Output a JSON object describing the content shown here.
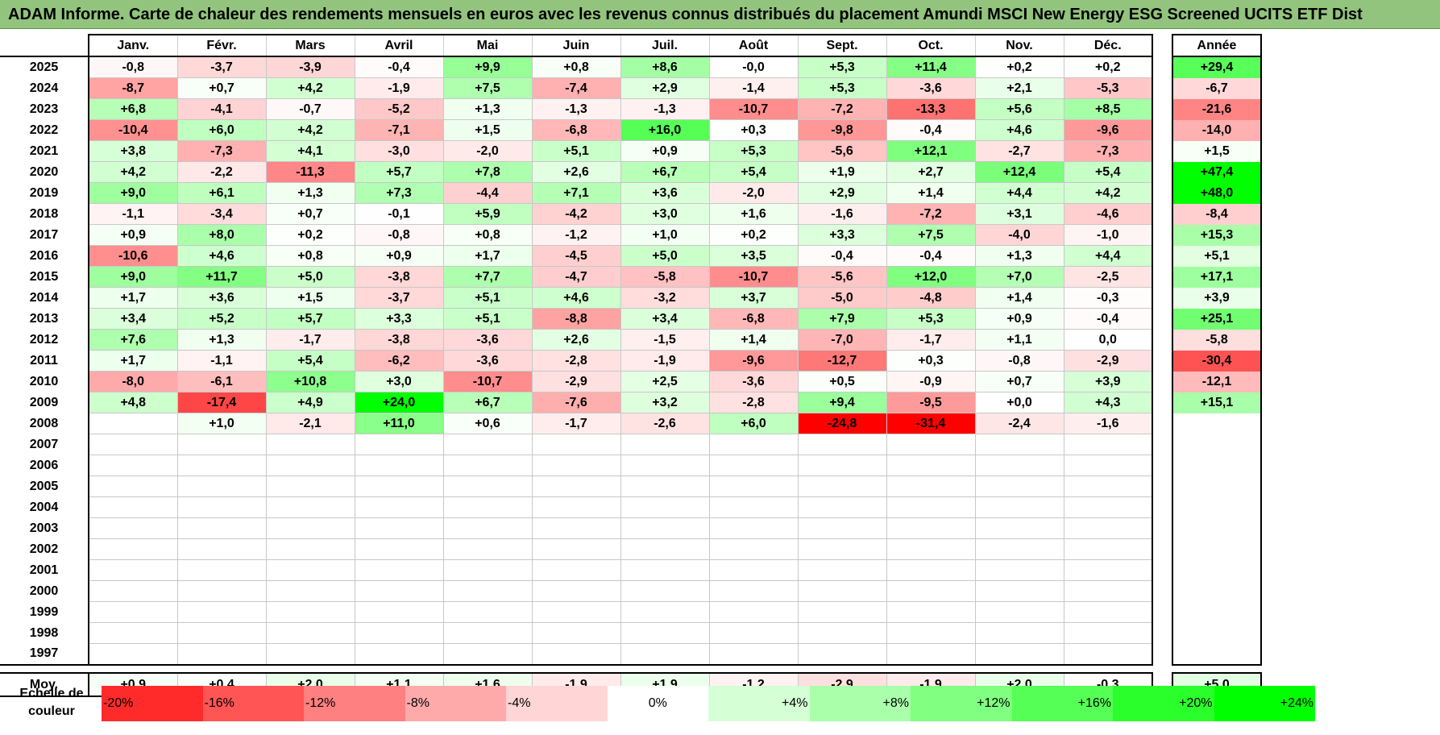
{
  "title": "ADAM Informe. Carte de chaleur des rendements mensuels en euros avec les revenus connus distribués du placement Amundi MSCI New Energy ESG Screened UCITS ETF Dist",
  "colors": {
    "title_bg": "#92c47d",
    "negative_max": "#ff0000",
    "neutral": "#ffffff",
    "positive_max": "#00ff00"
  },
  "chart_data": {
    "type": "heatmap",
    "title": "ADAM Informe. Carte de chaleur des rendements mensuels en euros avec les revenus connus distribués du placement Amundi MSCI New Energy ESG Screened UCITS ETF Dist",
    "columns": [
      "Janv.",
      "Févr.",
      "Mars",
      "Avril",
      "Mai",
      "Juin",
      "Juil.",
      "Août",
      "Sept.",
      "Oct.",
      "Nov.",
      "Déc."
    ],
    "total_header": "Année",
    "rows": [
      {
        "year": "2025",
        "values": [
          "-0,8",
          "-3,7",
          "-3,9",
          "-0,4",
          "+9,9",
          "+0,8",
          "+8,6",
          "-0,0",
          "+5,3",
          "+11,4",
          "+0,2",
          "+0,2"
        ],
        "total": "+29,4"
      },
      {
        "year": "2024",
        "values": [
          "-8,7",
          "+0,7",
          "+4,2",
          "-1,9",
          "+7,5",
          "-7,4",
          "+2,9",
          "-1,4",
          "+5,3",
          "-3,6",
          "+2,1",
          "-5,3"
        ],
        "total": "-6,7"
      },
      {
        "year": "2023",
        "values": [
          "+6,8",
          "-4,1",
          "-0,7",
          "-5,2",
          "+1,3",
          "-1,3",
          "-1,3",
          "-10,7",
          "-7,2",
          "-13,3",
          "+5,6",
          "+8,5"
        ],
        "total": "-21,6"
      },
      {
        "year": "2022",
        "values": [
          "-10,4",
          "+6,0",
          "+4,2",
          "-7,1",
          "+1,5",
          "-6,8",
          "+16,0",
          "+0,3",
          "-9,8",
          "-0,4",
          "+4,6",
          "-9,6"
        ],
        "total": "-14,0"
      },
      {
        "year": "2021",
        "values": [
          "+3,8",
          "-7,3",
          "+4,1",
          "-3,0",
          "-2,0",
          "+5,1",
          "+0,9",
          "+5,3",
          "-5,6",
          "+12,1",
          "-2,7",
          "-7,3"
        ],
        "total": "+1,5"
      },
      {
        "year": "2020",
        "values": [
          "+4,2",
          "-2,2",
          "-11,3",
          "+5,7",
          "+7,8",
          "+2,6",
          "+6,7",
          "+5,4",
          "+1,9",
          "+2,7",
          "+12,4",
          "+5,4"
        ],
        "total": "+47,4"
      },
      {
        "year": "2019",
        "values": [
          "+9,0",
          "+6,1",
          "+1,3",
          "+7,3",
          "-4,4",
          "+7,1",
          "+3,6",
          "-2,0",
          "+2,9",
          "+1,4",
          "+4,4",
          "+4,2"
        ],
        "total": "+48,0"
      },
      {
        "year": "2018",
        "values": [
          "-1,1",
          "-3,4",
          "+0,7",
          "-0,1",
          "+5,9",
          "-4,2",
          "+3,0",
          "+1,6",
          "-1,6",
          "-7,2",
          "+3,1",
          "-4,6"
        ],
        "total": "-8,4"
      },
      {
        "year": "2017",
        "values": [
          "+0,9",
          "+8,0",
          "+0,2",
          "-0,8",
          "+0,8",
          "-1,2",
          "+1,0",
          "+0,2",
          "+3,3",
          "+7,5",
          "-4,0",
          "-1,0"
        ],
        "total": "+15,3"
      },
      {
        "year": "2016",
        "values": [
          "-10,6",
          "+4,6",
          "+0,8",
          "+0,9",
          "+1,7",
          "-4,5",
          "+5,0",
          "+3,5",
          "-0,4",
          "-0,4",
          "+1,3",
          "+4,4"
        ],
        "total": "+5,1"
      },
      {
        "year": "2015",
        "values": [
          "+9,0",
          "+11,7",
          "+5,0",
          "-3,8",
          "+7,7",
          "-4,7",
          "-5,8",
          "-10,7",
          "-5,6",
          "+12,0",
          "+7,0",
          "-2,5"
        ],
        "total": "+17,1"
      },
      {
        "year": "2014",
        "values": [
          "+1,7",
          "+3,6",
          "+1,5",
          "-3,7",
          "+5,1",
          "+4,6",
          "-3,2",
          "+3,7",
          "-5,0",
          "-4,8",
          "+1,4",
          "-0,3"
        ],
        "total": "+3,9"
      },
      {
        "year": "2013",
        "values": [
          "+3,4",
          "+5,2",
          "+5,7",
          "+3,3",
          "+5,1",
          "-8,8",
          "+3,4",
          "-6,8",
          "+7,9",
          "+5,3",
          "+0,9",
          "-0,4"
        ],
        "total": "+25,1"
      },
      {
        "year": "2012",
        "values": [
          "+7,6",
          "+1,3",
          "-1,7",
          "-3,8",
          "-3,6",
          "+2,6",
          "-1,5",
          "+1,4",
          "-7,0",
          "-1,7",
          "+1,1",
          "0,0"
        ],
        "total": "-5,8"
      },
      {
        "year": "2011",
        "values": [
          "+1,7",
          "-1,1",
          "+5,4",
          "-6,2",
          "-3,6",
          "-2,8",
          "-1,9",
          "-9,6",
          "-12,7",
          "+0,3",
          "-0,8",
          "-2,9"
        ],
        "total": "-30,4"
      },
      {
        "year": "2010",
        "values": [
          "-8,0",
          "-6,1",
          "+10,8",
          "+3,0",
          "-10,7",
          "-2,9",
          "+2,5",
          "-3,6",
          "+0,5",
          "-0,9",
          "+0,7",
          "+3,9"
        ],
        "total": "-12,1"
      },
      {
        "year": "2009",
        "values": [
          "+4,8",
          "-17,4",
          "+4,9",
          "+24,0",
          "+6,7",
          "-7,6",
          "+3,2",
          "-2,8",
          "+9,4",
          "-9,5",
          "+0,0",
          "+4,3"
        ],
        "total": "+15,1"
      },
      {
        "year": "2008",
        "values": [
          "",
          "+1,0",
          "-2,1",
          "+11,0",
          "+0,6",
          "-1,7",
          "-2,6",
          "+6,0",
          "-24,8",
          "-31,4",
          "-2,4",
          "-1,6"
        ],
        "total": ""
      },
      {
        "year": "2007",
        "values": [
          "",
          "",
          "",
          "",
          "",
          "",
          "",
          "",
          "",
          "",
          "",
          ""
        ],
        "total": ""
      },
      {
        "year": "2006",
        "values": [
          "",
          "",
          "",
          "",
          "",
          "",
          "",
          "",
          "",
          "",
          "",
          ""
        ],
        "total": ""
      },
      {
        "year": "2005",
        "values": [
          "",
          "",
          "",
          "",
          "",
          "",
          "",
          "",
          "",
          "",
          "",
          ""
        ],
        "total": ""
      },
      {
        "year": "2004",
        "values": [
          "",
          "",
          "",
          "",
          "",
          "",
          "",
          "",
          "",
          "",
          "",
          ""
        ],
        "total": ""
      },
      {
        "year": "2003",
        "values": [
          "",
          "",
          "",
          "",
          "",
          "",
          "",
          "",
          "",
          "",
          "",
          ""
        ],
        "total": ""
      },
      {
        "year": "2002",
        "values": [
          "",
          "",
          "",
          "",
          "",
          "",
          "",
          "",
          "",
          "",
          "",
          ""
        ],
        "total": ""
      },
      {
        "year": "2001",
        "values": [
          "",
          "",
          "",
          "",
          "",
          "",
          "",
          "",
          "",
          "",
          "",
          ""
        ],
        "total": ""
      },
      {
        "year": "2000",
        "values": [
          "",
          "",
          "",
          "",
          "",
          "",
          "",
          "",
          "",
          "",
          "",
          ""
        ],
        "total": ""
      },
      {
        "year": "1999",
        "values": [
          "",
          "",
          "",
          "",
          "",
          "",
          "",
          "",
          "",
          "",
          "",
          ""
        ],
        "total": ""
      },
      {
        "year": "1998",
        "values": [
          "",
          "",
          "",
          "",
          "",
          "",
          "",
          "",
          "",
          "",
          "",
          ""
        ],
        "total": ""
      },
      {
        "year": "1997",
        "values": [
          "",
          "",
          "",
          "",
          "",
          "",
          "",
          "",
          "",
          "",
          "",
          ""
        ],
        "total": ""
      }
    ],
    "average": {
      "label": "Moy.",
      "values": [
        "+0,9",
        "+0,4",
        "+2,0",
        "+1,1",
        "+1,6",
        "-1,9",
        "+1,9",
        "-1,2",
        "-2,9",
        "-1,9",
        "+2,0",
        "-0,3"
      ],
      "total": "+5,0"
    },
    "color_scale": {
      "label": "Echelle de couleur",
      "steps": [
        "-20%",
        "-16%",
        "-12%",
        "-8%",
        "-4%",
        "0%",
        "+4%",
        "+8%",
        "+12%",
        "+16%",
        "+20%",
        "+24%"
      ]
    }
  }
}
